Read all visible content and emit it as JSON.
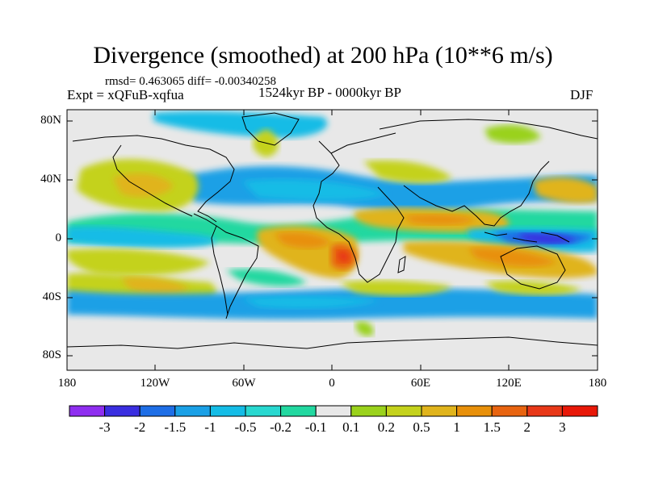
{
  "title": "Divergence (smoothed) at 200 hPa (10**6 m/s)",
  "stats": "rmsd= 0.463065 diff= -0.00340258",
  "experiment": "Expt = xQFuB-xqfua",
  "period": "1524kyr BP - 0000kyr BP",
  "season": "DJF",
  "axes": {
    "lon_ticks": [
      "180",
      "120W",
      "60W",
      "0",
      "60E",
      "120E",
      "180"
    ],
    "lat_ticks": [
      "80N",
      "40N",
      "0",
      "40S",
      "80S"
    ]
  },
  "colorbar": {
    "labels": [
      "-3",
      "-2",
      "-1.5",
      "-1",
      "-0.5",
      "-0.2",
      "-0.1",
      "0.1",
      "0.2",
      "0.5",
      "1",
      "1.5",
      "2",
      "3"
    ],
    "colors": [
      "#8f2ef0",
      "#3a2ee0",
      "#1e6ee6",
      "#1aa0e6",
      "#14bce6",
      "#28d8d0",
      "#22d8a0",
      "#e8e8e8",
      "#9ad21c",
      "#c4d21c",
      "#e0b41c",
      "#e8900a",
      "#e86410",
      "#e83818",
      "#e81808"
    ]
  },
  "map_icon": "world-coastlines"
}
